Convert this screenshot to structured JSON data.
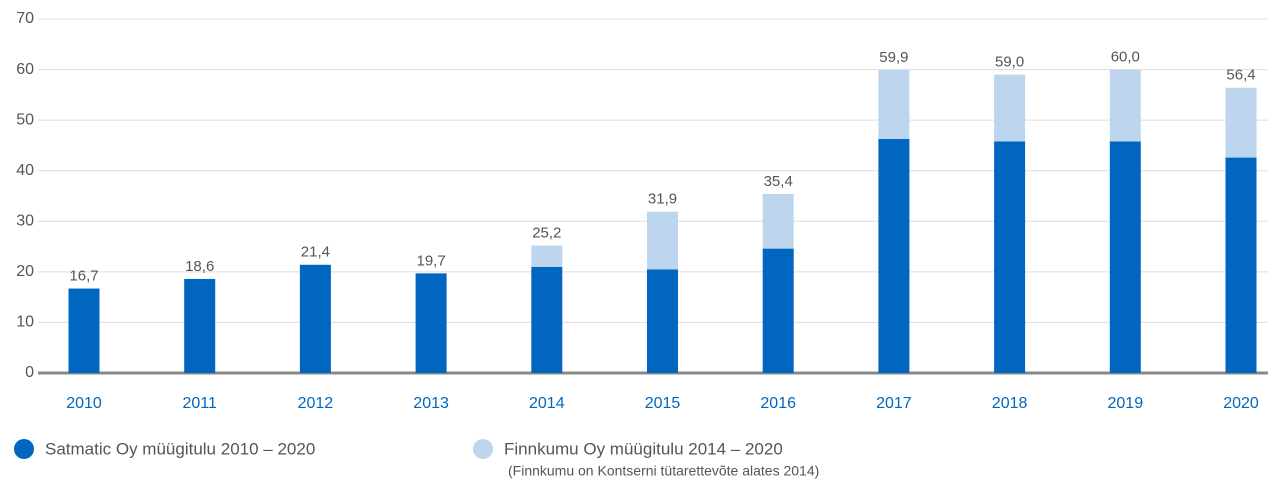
{
  "chart_data": {
    "type": "stacked_bar",
    "categories": [
      "2010",
      "2011",
      "2012",
      "2013",
      "2014",
      "2015",
      "2016",
      "2017",
      "2018",
      "2019",
      "2020"
    ],
    "series": [
      {
        "name": "Satmatic Oy müügitulu 2010 – 2020",
        "color": "#0066bf",
        "values": [
          16.7,
          18.6,
          21.4,
          19.7,
          21.0,
          20.5,
          24.6,
          46.3,
          45.8,
          45.8,
          42.6
        ]
      },
      {
        "name": "Finnkumu Oy müügitulu 2014 – 2020",
        "color": "#bdd6ee",
        "values": [
          null,
          null,
          null,
          null,
          4.2,
          11.4,
          10.8,
          13.6,
          13.2,
          14.2,
          13.8
        ]
      }
    ],
    "total_labels": [
      "16,7",
      "18,6",
      "21,4",
      "19,7",
      "25,2",
      "31,9",
      "35,4",
      "59,9",
      "59,0",
      "60,0",
      "56,4"
    ],
    "legend_note": "(Finnkumu on Kontserni tütarettevõte alates 2014)",
    "ylim": [
      0,
      70
    ],
    "yticks": [
      0,
      10,
      20,
      30,
      40,
      50,
      60,
      70
    ],
    "grid": true,
    "legend": "bottom"
  }
}
